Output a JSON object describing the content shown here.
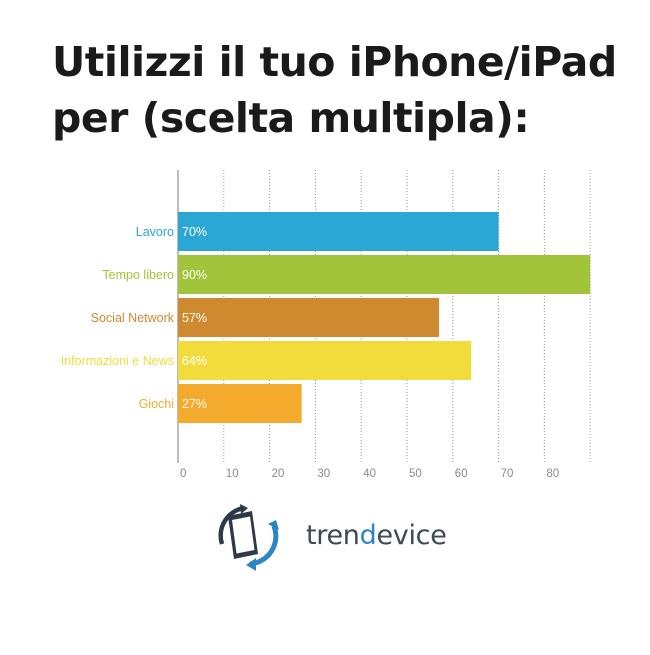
{
  "title": "Utilizzi il tuo iPhone/iPad per (scelta multipla):",
  "chart_data": {
    "type": "bar",
    "orientation": "horizontal",
    "title": "Utilizzi il tuo iPhone/iPad per (scelta multipla):",
    "categories": [
      "Lavoro",
      "Tempo libero",
      "Social Network",
      "Informazioni e News",
      "Giochi"
    ],
    "values": [
      70,
      90,
      57,
      64,
      27
    ],
    "value_labels": [
      "70%",
      "90%",
      "57%",
      "64%",
      "27%"
    ],
    "colors": [
      "#2aa7d4",
      "#a2c43a",
      "#cf8a2f",
      "#f1dc3c",
      "#f4aa2c"
    ],
    "xticks": [
      0,
      10,
      20,
      30,
      40,
      50,
      60,
      70,
      80
    ],
    "xlim": [
      0,
      90
    ],
    "grid": "vertical-dotted",
    "legend": "none"
  },
  "logo": {
    "name_prefix": "tren",
    "name_accent": "d",
    "name_suffix": "evice",
    "accent_color": "#2a86c5"
  }
}
